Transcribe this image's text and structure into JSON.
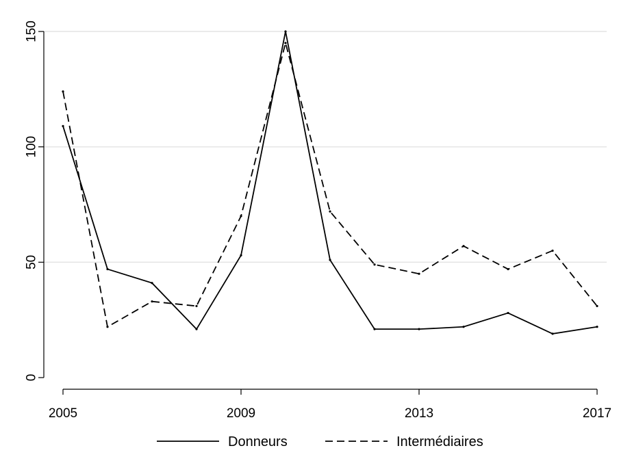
{
  "chart_data": {
    "type": "line",
    "x": [
      2005,
      2006,
      2007,
      2008,
      2009,
      2010,
      2011,
      2012,
      2013,
      2014,
      2015,
      2016,
      2017
    ],
    "xticks": [
      2005,
      2009,
      2013,
      2017
    ],
    "xlim": [
      2005,
      2017
    ],
    "yticks": [
      0,
      50,
      100,
      150
    ],
    "ylim": [
      0,
      150
    ],
    "grid": true,
    "legend_position": "bottom",
    "series": [
      {
        "name": "Donneurs",
        "style": "solid",
        "color": "#000000",
        "values": [
          109,
          47,
          41,
          21,
          53,
          150,
          51,
          21,
          21,
          22,
          28,
          19,
          22
        ]
      },
      {
        "name": "Intermédiaires",
        "style": "dashed",
        "color": "#000000",
        "values": [
          124,
          22,
          33,
          31,
          70,
          145,
          72,
          49,
          45,
          57,
          47,
          55,
          31
        ]
      }
    ],
    "title": "",
    "xlabel": "",
    "ylabel": ""
  }
}
